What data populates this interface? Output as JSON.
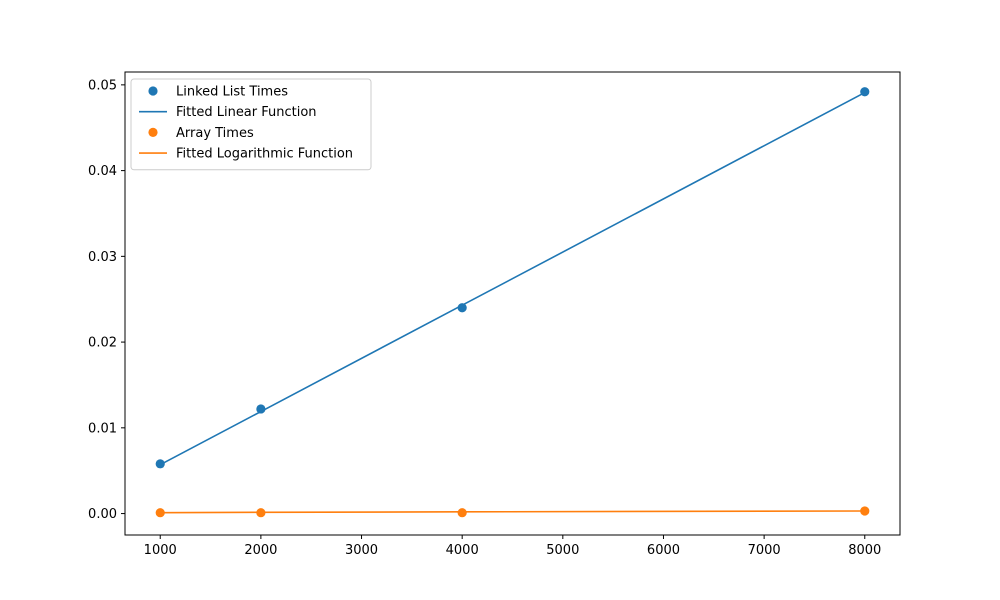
{
  "chart_data": {
    "type": "scatter",
    "title": "",
    "xlabel": "",
    "ylabel": "",
    "xlim": [
      650,
      8350
    ],
    "ylim": [
      -0.0025,
      0.0515
    ],
    "xticks": [
      1000,
      2000,
      3000,
      4000,
      5000,
      6000,
      7000,
      8000
    ],
    "yticks": [
      0.0,
      0.01,
      0.02,
      0.03,
      0.04,
      0.05
    ],
    "xtick_labels": [
      "1000",
      "2000",
      "3000",
      "4000",
      "5000",
      "6000",
      "7000",
      "8000"
    ],
    "ytick_labels": [
      "0.00",
      "0.01",
      "0.02",
      "0.03",
      "0.04",
      "0.05"
    ],
    "grid": false,
    "legend_position": "top-left",
    "series": [
      {
        "name": "Linked List Times",
        "kind": "scatter",
        "color": "#1f77b4",
        "x": [
          1000,
          2000,
          4000,
          8000
        ],
        "y": [
          0.0058,
          0.0122,
          0.024,
          0.0492
        ]
      },
      {
        "name": "Fitted Linear Function",
        "kind": "line",
        "color": "#1f77b4",
        "x": [
          1000,
          2000,
          4000,
          8000
        ],
        "y": [
          0.0057,
          0.0119,
          0.0243,
          0.0491
        ]
      },
      {
        "name": "Array Times",
        "kind": "scatter",
        "color": "#ff7f0e",
        "x": [
          1000,
          2000,
          4000,
          8000
        ],
        "y": [
          0.0001,
          0.0001,
          0.0001,
          0.0003
        ]
      },
      {
        "name": "Fitted Logarithmic Function",
        "kind": "line",
        "color": "#ff7f0e",
        "x": [
          1000,
          2000,
          4000,
          8000
        ],
        "y": [
          0.0001,
          0.00015,
          0.0002,
          0.0003
        ]
      }
    ]
  }
}
